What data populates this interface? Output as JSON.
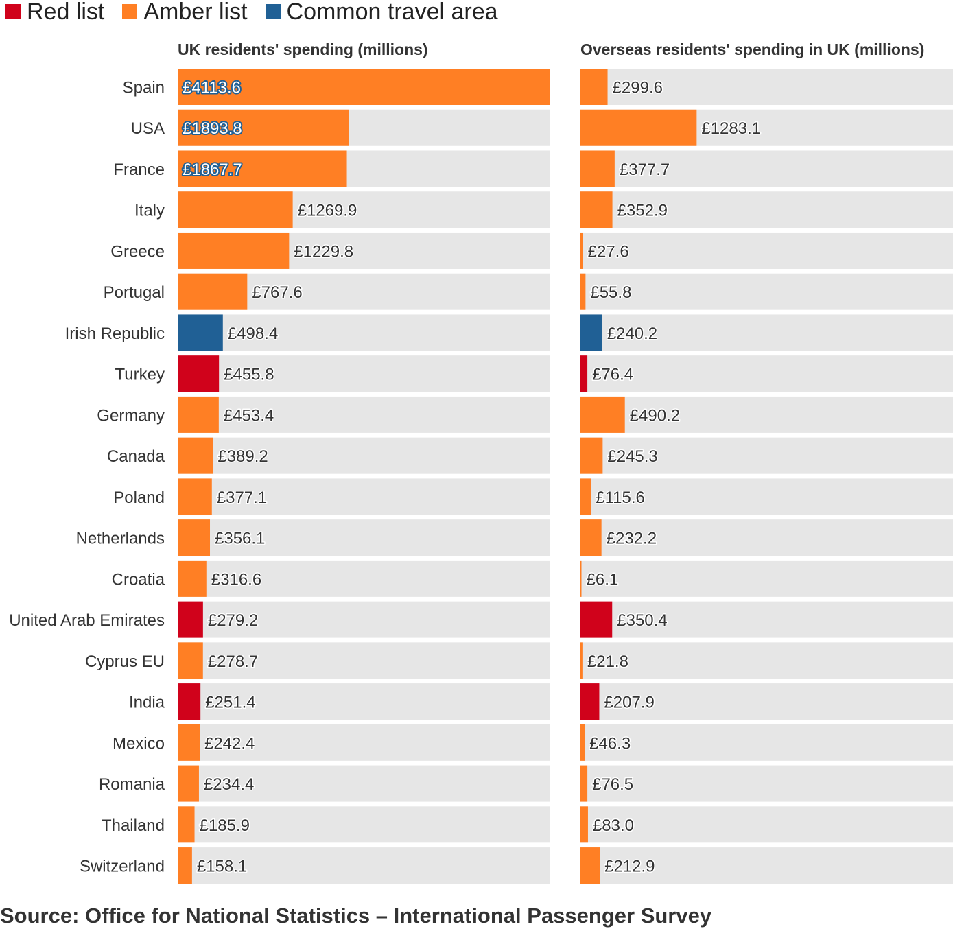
{
  "legend": [
    {
      "label": "Red list",
      "color": "#d0021b"
    },
    {
      "label": "Amber list",
      "color": "#ff7f24"
    },
    {
      "label": "Common travel area",
      "color": "#206095"
    }
  ],
  "source": "Source: Office for National Statistics – International Passenger Survey",
  "colors": {
    "red": "#d0021b",
    "amber": "#ff7f24",
    "cta": "#206095",
    "track": "#e6e6e6"
  },
  "chart_data": [
    {
      "type": "bar",
      "orientation": "horizontal",
      "title": "UK residents' spending (millions)",
      "value_prefix": "£",
      "xlim": [
        0,
        4113.6
      ],
      "categories": [
        "Spain",
        "USA",
        "France",
        "Italy",
        "Greece",
        "Portugal",
        "Irish Republic",
        "Turkey",
        "Germany",
        "Canada",
        "Poland",
        "Netherlands",
        "Croatia",
        "United Arab Emirates",
        "Cyprus EU",
        "India",
        "Mexico",
        "Romania",
        "Thailand",
        "Switzerland"
      ],
      "values": [
        4113.6,
        1893.8,
        1867.7,
        1269.9,
        1229.8,
        767.6,
        498.4,
        455.8,
        453.4,
        389.2,
        377.1,
        356.1,
        316.6,
        279.2,
        278.7,
        251.4,
        242.4,
        234.4,
        185.9,
        158.1
      ],
      "labels": [
        "£4113.6",
        "£1893.8",
        "£1867.7",
        "£1269.9",
        "£1229.8",
        "£767.6",
        "£498.4",
        "£455.8",
        "£453.4",
        "£389.2",
        "£377.1",
        "£356.1",
        "£316.6",
        "£279.2",
        "£278.7",
        "£251.4",
        "£242.4",
        "£234.4",
        "£185.9",
        "£158.1"
      ],
      "status": [
        "amber",
        "amber",
        "amber",
        "amber",
        "amber",
        "amber",
        "cta",
        "red",
        "amber",
        "amber",
        "amber",
        "amber",
        "amber",
        "red",
        "amber",
        "red",
        "amber",
        "amber",
        "amber",
        "amber"
      ],
      "labels_inside": [
        true,
        true,
        true,
        false,
        false,
        false,
        false,
        false,
        false,
        false,
        false,
        false,
        false,
        false,
        false,
        false,
        false,
        false,
        false,
        false
      ]
    },
    {
      "type": "bar",
      "orientation": "horizontal",
      "title": "Overseas residents' spending in UK (millions)",
      "value_prefix": "£",
      "xlim": [
        0,
        4113.6
      ],
      "categories": [
        "Spain",
        "USA",
        "France",
        "Italy",
        "Greece",
        "Portugal",
        "Irish Republic",
        "Turkey",
        "Germany",
        "Canada",
        "Poland",
        "Netherlands",
        "Croatia",
        "United Arab Emirates",
        "Cyprus EU",
        "India",
        "Mexico",
        "Romania",
        "Thailand",
        "Switzerland"
      ],
      "values": [
        299.6,
        1283.1,
        377.7,
        352.9,
        27.6,
        55.8,
        240.2,
        76.4,
        490.2,
        245.3,
        115.6,
        232.2,
        6.1,
        350.4,
        21.8,
        207.9,
        46.3,
        76.5,
        83.0,
        212.9
      ],
      "labels": [
        "£299.6",
        "£1283.1",
        "£377.7",
        "£352.9",
        "£27.6",
        "£55.8",
        "£240.2",
        "£76.4",
        "£490.2",
        "£245.3",
        "£115.6",
        "£232.2",
        "£6.1",
        "£350.4",
        "£21.8",
        "£207.9",
        "£46.3",
        "£76.5",
        "£83.0",
        "£212.9"
      ],
      "status": [
        "amber",
        "amber",
        "amber",
        "amber",
        "amber",
        "amber",
        "cta",
        "red",
        "amber",
        "amber",
        "amber",
        "amber",
        "amber",
        "red",
        "amber",
        "red",
        "amber",
        "amber",
        "amber",
        "amber"
      ]
    }
  ]
}
